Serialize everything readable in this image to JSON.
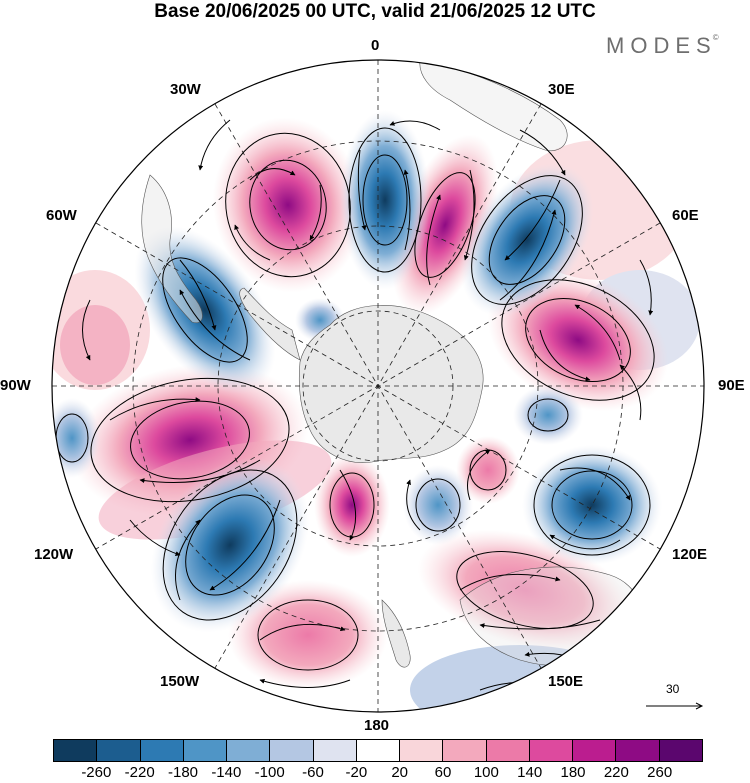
{
  "header": {
    "title": "Base 20/06/2025 00 UTC, valid 21/06/2025 12 UTC",
    "brand": "MODES",
    "brand_mark": "©"
  },
  "map": {
    "projection": "south-polar-stereographic",
    "longitude_labels": [
      "0",
      "30E",
      "60E",
      "90E",
      "120E",
      "150E",
      "180",
      "150W",
      "120W",
      "90W",
      "60W",
      "30W"
    ],
    "shaded_field_min": -260,
    "shaded_field_max": 260,
    "vector_overlay": true,
    "land_color": "#e9e9e9",
    "graticule_style": "dashed"
  },
  "reference_vector": {
    "label": "30"
  },
  "colorbar": {
    "ticks": [
      "-260",
      "-220",
      "-180",
      "-140",
      "-100",
      "-60",
      "-20",
      "20",
      "60",
      "100",
      "140",
      "180",
      "220",
      "260"
    ],
    "colors": [
      "#0f3b5e",
      "#1c5d8f",
      "#2d7ab3",
      "#4f95c6",
      "#7faed5",
      "#b4c7e3",
      "#dfe3f0",
      "#ffffff",
      "#f9d6da",
      "#f3a9bd",
      "#ec7aa8",
      "#dd4a9e",
      "#bb1d8f",
      "#8e0b84",
      "#5b066e"
    ]
  }
}
